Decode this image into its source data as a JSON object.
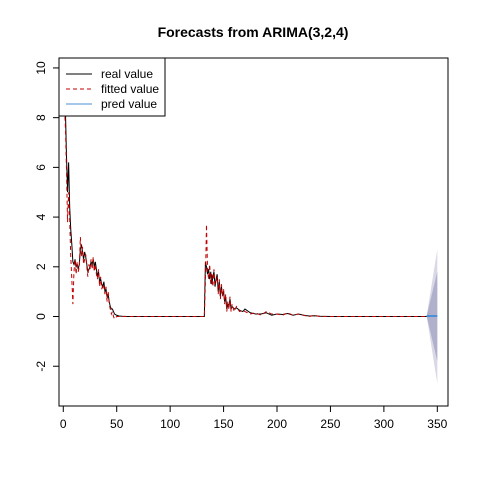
{
  "chart_data": {
    "type": "line",
    "title": "Forecasts from ARIMA(3,2,4)",
    "xlabel": "",
    "ylabel": "",
    "xlim": [
      -4,
      360
    ],
    "ylim": [
      -3.6,
      10.4
    ],
    "x_ticks": [
      0,
      50,
      100,
      150,
      200,
      250,
      300,
      350
    ],
    "y_ticks": [
      -2,
      0,
      2,
      4,
      6,
      8,
      10
    ],
    "x_tick_labels": [
      "0",
      "50",
      "100",
      "150",
      "200",
      "250",
      "300",
      "350"
    ],
    "y_tick_labels": [
      "-2",
      "0",
      "2",
      "4",
      "6",
      "8",
      "10"
    ],
    "grid": false,
    "legend_position": "top-left",
    "legend": [
      {
        "label": "real value",
        "color": "#000000",
        "style": "solid"
      },
      {
        "label": "fitted value",
        "color": "#c00000",
        "style": "dashed"
      },
      {
        "label": "pred value",
        "color": "#4a90d9",
        "style": "solid"
      }
    ],
    "series": [
      {
        "name": "real value",
        "color": "#000000",
        "x": [
          1,
          2,
          3,
          4,
          5,
          6,
          7,
          8,
          9,
          10,
          11,
          12,
          13,
          14,
          15,
          16,
          17,
          18,
          19,
          20,
          21,
          22,
          23,
          24,
          25,
          26,
          27,
          28,
          29,
          30,
          31,
          32,
          33,
          34,
          35,
          36,
          37,
          38,
          39,
          40,
          41,
          42,
          43,
          44,
          45,
          46,
          47,
          48,
          50,
          52,
          55,
          60,
          70,
          80,
          90,
          100,
          110,
          120,
          130,
          132,
          133,
          134,
          135,
          136,
          137,
          138,
          139,
          140,
          141,
          142,
          143,
          144,
          145,
          146,
          147,
          148,
          149,
          150,
          151,
          152,
          153,
          154,
          155,
          156,
          157,
          158,
          160,
          162,
          165,
          168,
          170,
          175,
          180,
          185,
          190,
          195,
          200,
          205,
          210,
          215,
          220,
          225,
          230,
          235,
          240,
          250,
          260,
          270,
          280,
          290,
          300,
          310,
          320,
          330,
          340
        ],
        "y": [
          9.2,
          8.3,
          6.5,
          5.0,
          6.2,
          4.4,
          3.5,
          2.9,
          2.2,
          2.1,
          2.3,
          2.0,
          2.1,
          1.9,
          2.1,
          2.7,
          2.9,
          2.6,
          2.3,
          2.6,
          2.4,
          2.1,
          1.8,
          1.9,
          2.0,
          2.2,
          2.1,
          2.3,
          2.0,
          2.2,
          1.9,
          1.6,
          1.8,
          1.4,
          1.5,
          1.3,
          1.2,
          1.4,
          1.0,
          1.1,
          0.8,
          0.9,
          0.6,
          0.4,
          0.3,
          0.3,
          0.2,
          0.1,
          0.05,
          0.02,
          0.01,
          0,
          0,
          0,
          0,
          0,
          0,
          0,
          0,
          0,
          2.2,
          2.0,
          1.7,
          1.9,
          1.5,
          1.8,
          1.3,
          1.6,
          1.8,
          1.2,
          1.5,
          1.7,
          1.0,
          1.4,
          0.8,
          1.2,
          0.9,
          1.0,
          0.6,
          0.8,
          0.3,
          0.5,
          0.4,
          0.7,
          0.3,
          0.4,
          0.3,
          0.35,
          0.25,
          0.2,
          0.3,
          0.15,
          0.1,
          0.1,
          0.15,
          0.05,
          0.1,
          0.08,
          0.12,
          0.05,
          0.1,
          0.05,
          0.02,
          0.03,
          0.01,
          0,
          0,
          0,
          0,
          0,
          0,
          0,
          0,
          0,
          0
        ]
      },
      {
        "name": "fitted value",
        "color": "#c00000",
        "x": [
          1,
          2,
          3,
          4,
          5,
          6,
          7,
          8,
          9,
          10,
          11,
          12,
          13,
          14,
          15,
          16,
          17,
          18,
          19,
          20,
          21,
          22,
          23,
          24,
          25,
          26,
          27,
          28,
          29,
          30,
          31,
          32,
          33,
          34,
          35,
          36,
          37,
          38,
          39,
          40,
          41,
          42,
          43,
          44,
          45,
          46,
          47,
          48,
          50,
          52,
          55,
          60,
          70,
          80,
          90,
          100,
          110,
          120,
          130,
          132,
          133,
          134,
          135,
          136,
          137,
          138,
          139,
          140,
          141,
          142,
          143,
          144,
          145,
          146,
          147,
          148,
          149,
          150,
          151,
          152,
          153,
          154,
          155,
          156,
          157,
          158,
          160,
          162,
          165,
          168,
          170,
          175,
          180,
          185,
          190,
          195,
          200,
          205,
          210,
          215,
          220,
          225,
          230,
          235,
          240,
          250,
          260,
          270,
          280,
          290,
          300,
          310,
          320,
          330,
          340
        ],
        "y": [
          8.6,
          7.6,
          5.9,
          3.8,
          5.0,
          3.9,
          2.4,
          1.5,
          0.5,
          1.8,
          2.3,
          1.7,
          2.2,
          1.8,
          2.0,
          3.2,
          2.4,
          2.8,
          2.1,
          2.3,
          2.5,
          2.0,
          1.6,
          2.1,
          1.9,
          2.3,
          1.9,
          2.4,
          1.8,
          2.1,
          1.7,
          1.5,
          1.9,
          1.2,
          1.6,
          1.1,
          1.3,
          1.2,
          0.9,
          1.2,
          0.6,
          1.0,
          0.5,
          0.3,
          0.1,
          0.2,
          0.0,
          -0.1,
          0.0,
          0.0,
          0.0,
          0,
          0,
          0,
          0,
          0,
          0,
          0,
          0,
          0,
          1.4,
          3.7,
          1.9,
          1.5,
          2.1,
          1.3,
          1.7,
          1.2,
          1.9,
          1.3,
          1.4,
          1.6,
          0.9,
          1.5,
          0.7,
          1.3,
          0.8,
          1.1,
          0.5,
          0.9,
          0.2,
          0.6,
          0.3,
          0.8,
          0.2,
          0.5,
          0.2,
          0.4,
          0.2,
          0.25,
          0.2,
          0.1,
          0.15,
          0.05,
          0.2,
          0.1,
          0.1,
          0.05,
          0.15,
          0.05,
          0.1,
          0.05,
          0.0,
          0.05,
          0.0,
          0,
          0,
          0,
          0,
          0,
          0,
          0,
          0,
          0,
          0
        ]
      }
    ],
    "forecast": {
      "name": "pred value",
      "color": "#4a90d9",
      "x_start": 340,
      "x_end": 350,
      "value": 0.02,
      "interval_80": {
        "upper_end": 1.8,
        "lower_end": -1.8,
        "color": "#b0b0cc"
      },
      "interval_95": {
        "upper_end": 2.7,
        "lower_end": -2.7,
        "color": "#d8d8e6"
      }
    }
  }
}
